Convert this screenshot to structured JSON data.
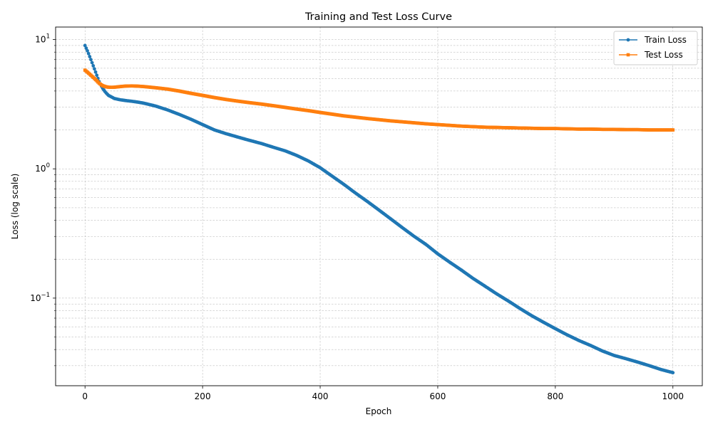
{
  "chart_data": {
    "type": "line",
    "title": "Training and Test Loss Curve",
    "xlabel": "Epoch",
    "ylabel": "Loss (log scale)",
    "xlim": [
      -50,
      1050
    ],
    "ylim": [
      0.021,
      12.5
    ],
    "yscale": "log",
    "grid": true,
    "legend_position": "top-right",
    "x_ticks": [
      0,
      200,
      400,
      600,
      800,
      1000
    ],
    "y_major_ticks": [
      0.1,
      1,
      10
    ],
    "y_major_tick_labels": [
      {
        "base": "10",
        "exp": "−1"
      },
      {
        "base": "10",
        "exp": "0"
      },
      {
        "base": "10",
        "exp": "1"
      }
    ],
    "series": [
      {
        "name": "Train Loss",
        "color": "#1f77b4",
        "marker": "circle",
        "x": [
          0,
          5,
          10,
          15,
          20,
          25,
          30,
          35,
          40,
          45,
          50,
          60,
          70,
          80,
          90,
          100,
          120,
          140,
          160,
          180,
          200,
          220,
          240,
          260,
          280,
          300,
          320,
          340,
          360,
          380,
          400,
          420,
          440,
          460,
          480,
          500,
          520,
          540,
          560,
          580,
          600,
          620,
          640,
          660,
          680,
          700,
          720,
          740,
          760,
          780,
          800,
          820,
          840,
          860,
          880,
          900,
          920,
          940,
          960,
          980,
          1000
        ],
        "y": [
          9.0,
          8.0,
          7.0,
          6.1,
          5.3,
          4.6,
          4.2,
          3.9,
          3.7,
          3.6,
          3.5,
          3.42,
          3.37,
          3.33,
          3.28,
          3.22,
          3.06,
          2.86,
          2.64,
          2.42,
          2.2,
          2.0,
          1.87,
          1.76,
          1.66,
          1.57,
          1.47,
          1.38,
          1.27,
          1.15,
          1.02,
          0.88,
          0.76,
          0.65,
          0.56,
          0.48,
          0.41,
          0.35,
          0.3,
          0.26,
          0.22,
          0.19,
          0.165,
          0.142,
          0.124,
          0.108,
          0.095,
          0.083,
          0.073,
          0.065,
          0.058,
          0.052,
          0.047,
          0.043,
          0.039,
          0.036,
          0.034,
          0.032,
          0.03,
          0.028,
          0.0265
        ]
      },
      {
        "name": "Test Loss",
        "color": "#ff7f0e",
        "marker": "square",
        "x": [
          0,
          5,
          10,
          15,
          20,
          25,
          30,
          35,
          40,
          45,
          50,
          60,
          70,
          80,
          90,
          100,
          120,
          140,
          160,
          180,
          200,
          220,
          240,
          260,
          280,
          300,
          320,
          340,
          360,
          380,
          400,
          420,
          440,
          460,
          480,
          500,
          520,
          540,
          560,
          580,
          600,
          620,
          640,
          660,
          680,
          700,
          720,
          740,
          760,
          780,
          800,
          820,
          840,
          860,
          880,
          900,
          920,
          940,
          960,
          980,
          1000
        ],
        "y": [
          5.8,
          5.55,
          5.3,
          5.05,
          4.8,
          4.55,
          4.4,
          4.32,
          4.28,
          4.27,
          4.28,
          4.33,
          4.37,
          4.38,
          4.36,
          4.33,
          4.24,
          4.14,
          4.0,
          3.84,
          3.7,
          3.56,
          3.44,
          3.34,
          3.25,
          3.17,
          3.08,
          2.99,
          2.9,
          2.82,
          2.73,
          2.65,
          2.57,
          2.51,
          2.45,
          2.4,
          2.35,
          2.31,
          2.27,
          2.23,
          2.2,
          2.17,
          2.14,
          2.12,
          2.1,
          2.09,
          2.08,
          2.07,
          2.06,
          2.05,
          2.05,
          2.04,
          2.03,
          2.03,
          2.02,
          2.02,
          2.01,
          2.01,
          2.0,
          2.0,
          2.0
        ]
      }
    ]
  }
}
